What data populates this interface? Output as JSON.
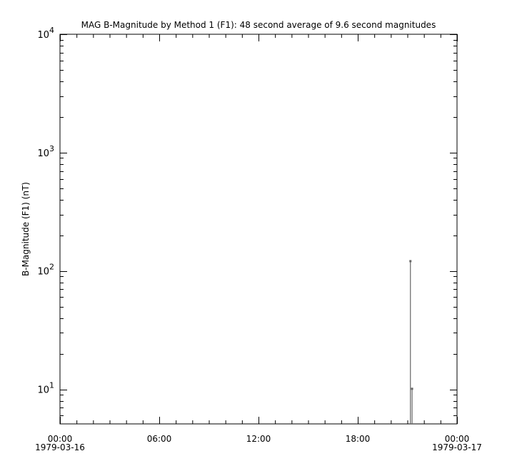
{
  "chart_data": {
    "type": "line",
    "title": "MAG  B-Magnitude by Method 1 (F1): 48 second average of 9.6 second magnitudes",
    "xlabel": "",
    "ylabel": "B-Magnitude (F1) (nT)",
    "yscale": "log",
    "ylim": [
      5.1,
      10000
    ],
    "xlim": [
      "1979-03-16 00:00",
      "1979-03-17 00:00"
    ],
    "grid": false,
    "x_ticks": [
      {
        "hour": 0,
        "label": "00:00",
        "sublabel": "1979-03-16"
      },
      {
        "hour": 6,
        "label": "06:00",
        "sublabel": ""
      },
      {
        "hour": 12,
        "label": "12:00",
        "sublabel": ""
      },
      {
        "hour": 18,
        "label": "18:00",
        "sublabel": ""
      },
      {
        "hour": 24,
        "label": "00:00",
        "sublabel": "1979-03-17"
      }
    ],
    "y_ticks": [
      {
        "value": 10,
        "base": "10",
        "exp": "1"
      },
      {
        "value": 100,
        "base": "10",
        "exp": "2"
      },
      {
        "value": 1000,
        "base": "10",
        "exp": "3"
      },
      {
        "value": 10000,
        "base": "10",
        "exp": "4"
      }
    ],
    "series": [
      {
        "color": "#666666",
        "points": [
          {
            "x": "1979-03-16 21:11",
            "y": 121
          },
          {
            "x": "1979-03-16 21:17",
            "y": 10.1
          }
        ]
      }
    ]
  }
}
